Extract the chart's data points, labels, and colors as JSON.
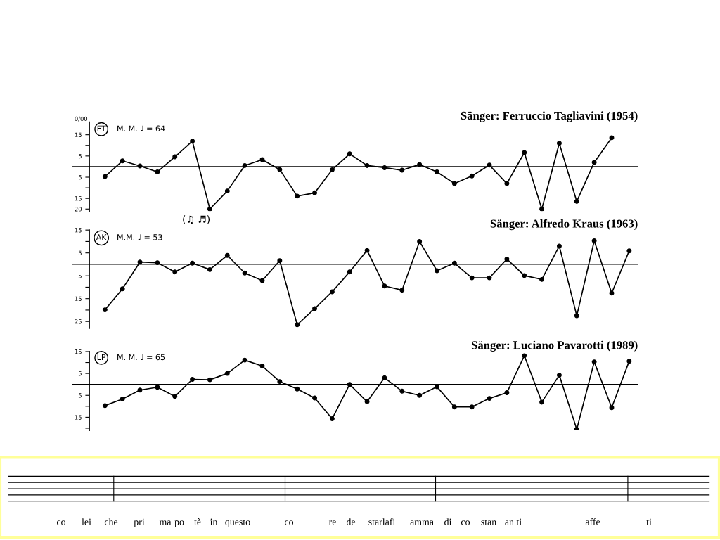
{
  "chart_data": [
    {
      "type": "line",
      "title": "Sänger: Ferruccio Tagliavini (1954)",
      "ylabel": "0/00",
      "annotations": [
        "FT",
        "M. M. ♩ = 64",
        "(♫ ♬)"
      ],
      "categories": [
        null,
        null,
        null,
        null,
        null,
        null,
        null,
        null,
        null,
        null,
        null,
        null,
        null,
        null,
        null,
        null,
        null,
        null,
        null,
        null,
        null,
        null,
        null,
        null,
        null,
        null,
        null,
        null,
        null,
        null,
        null
      ],
      "series": [
        {
          "color": "#000000",
          "values": [
            -4.7,
            2.7,
            0.3,
            -2.5,
            4.6,
            12,
            -20,
            -11.5,
            0.5,
            3.3,
            -1.4,
            -13.9,
            -12.4,
            -1.5,
            6,
            0.5,
            -0.5,
            -1.7,
            1,
            -2.5,
            -8,
            -4.4,
            0.7,
            -8,
            6.6,
            -20,
            11,
            -16.4,
            2,
            13.6,
            null
          ]
        }
      ],
      "ylim": [
        -21,
        21
      ],
      "yticks": [
        15,
        {
          "value": 10,
          "label": null
        },
        5,
        {
          "value": -5,
          "label": "5"
        },
        {
          "value": -10,
          "label": null
        },
        {
          "value": -15,
          "label": "15"
        },
        {
          "value": -20,
          "label": "20"
        }
      ],
      "ref_lines": [
        {
          "axis": "y",
          "value": 0,
          "color": "#000000"
        }
      ],
      "tick_labels": "y",
      "grid": false,
      "legend": false,
      "marker": "circle",
      "line_style": "solid"
    },
    {
      "type": "line",
      "title": "Sänger: Alfredo Kraus (1963)",
      "annotations": [
        "AK",
        "M.M. ♩ = 53"
      ],
      "categories": [
        null,
        null,
        null,
        null,
        null,
        null,
        null,
        null,
        null,
        null,
        null,
        null,
        null,
        null,
        null,
        null,
        null,
        null,
        null,
        null,
        null,
        null,
        null,
        null,
        null,
        null,
        null,
        null,
        null,
        null,
        null
      ],
      "series": [
        {
          "color": "#000000",
          "values": [
            -19.9,
            -10.7,
            1,
            0.7,
            -3.3,
            0.5,
            -2.3,
            3.9,
            -3.8,
            -7.1,
            1.6,
            -26.4,
            -19.4,
            -12,
            -3.3,
            6.1,
            -9.5,
            -11.3,
            10,
            -2.8,
            0.5,
            -5.9,
            -5.9,
            2.3,
            -4.9,
            -6.6,
            8,
            -22.5,
            10.3,
            -12.6,
            5.9
          ]
        }
      ],
      "ylim": [
        -28,
        15
      ],
      "yticks": [
        15,
        {
          "value": 10,
          "label": null
        },
        5,
        {
          "value": -5,
          "label": "5"
        },
        {
          "value": -10,
          "label": null
        },
        {
          "value": -15,
          "label": "15"
        },
        {
          "value": -20,
          "label": null
        },
        {
          "value": -25,
          "label": "25"
        }
      ],
      "ref_lines": [
        {
          "axis": "y",
          "value": 0,
          "color": "#000000"
        }
      ],
      "tick_labels": "y",
      "grid": false,
      "legend": false,
      "marker": "circle",
      "line_style": "solid"
    },
    {
      "type": "line",
      "title": "Sänger: Luciano Pavarotti (1989)",
      "annotations": [
        "LP",
        "M. M. ♩ = 65"
      ],
      "categories": [
        null,
        null,
        null,
        null,
        null,
        null,
        null,
        null,
        null,
        null,
        null,
        null,
        null,
        null,
        null,
        null,
        null,
        null,
        null,
        null,
        null,
        null,
        null,
        null,
        null,
        null,
        null,
        null,
        null,
        null,
        null
      ],
      "series": [
        {
          "color": "#000000",
          "values": [
            -9.7,
            -6.7,
            -2.6,
            -1.3,
            -5.5,
            2.3,
            2.1,
            5,
            11.1,
            8.4,
            1.3,
            -2.1,
            -6.2,
            -15.7,
            0,
            -7.9,
            3,
            -3.1,
            -5,
            -1.1,
            -10.3,
            -10.3,
            -6.4,
            -3.8,
            13.1,
            -8.1,
            4.2,
            -20.5,
            10.3,
            -10.6,
            10.6
          ]
        }
      ],
      "ylim": [
        -21,
        15
      ],
      "yticks": [
        15,
        {
          "value": 10,
          "label": null
        },
        5,
        {
          "value": -5,
          "label": "5"
        },
        {
          "value": -10,
          "label": null
        },
        {
          "value": -15,
          "label": "15"
        },
        {
          "value": -20,
          "label": null
        }
      ],
      "ref_lines": [
        {
          "axis": "y",
          "value": 0,
          "color": "#000000"
        }
      ],
      "tick_labels": "y",
      "grid": false,
      "legend": false,
      "marker": "circle",
      "line_style": "solid"
    },
    {
      "type": "other",
      "annotations": [
        "co",
        "lei",
        "che",
        "pri",
        "ma",
        "po",
        "tè",
        "in",
        "questo",
        "co",
        "re",
        "de",
        "starlafi",
        "amma",
        "di",
        "co",
        "stan",
        "an ti",
        "affe",
        "ti"
      ]
    }
  ]
}
